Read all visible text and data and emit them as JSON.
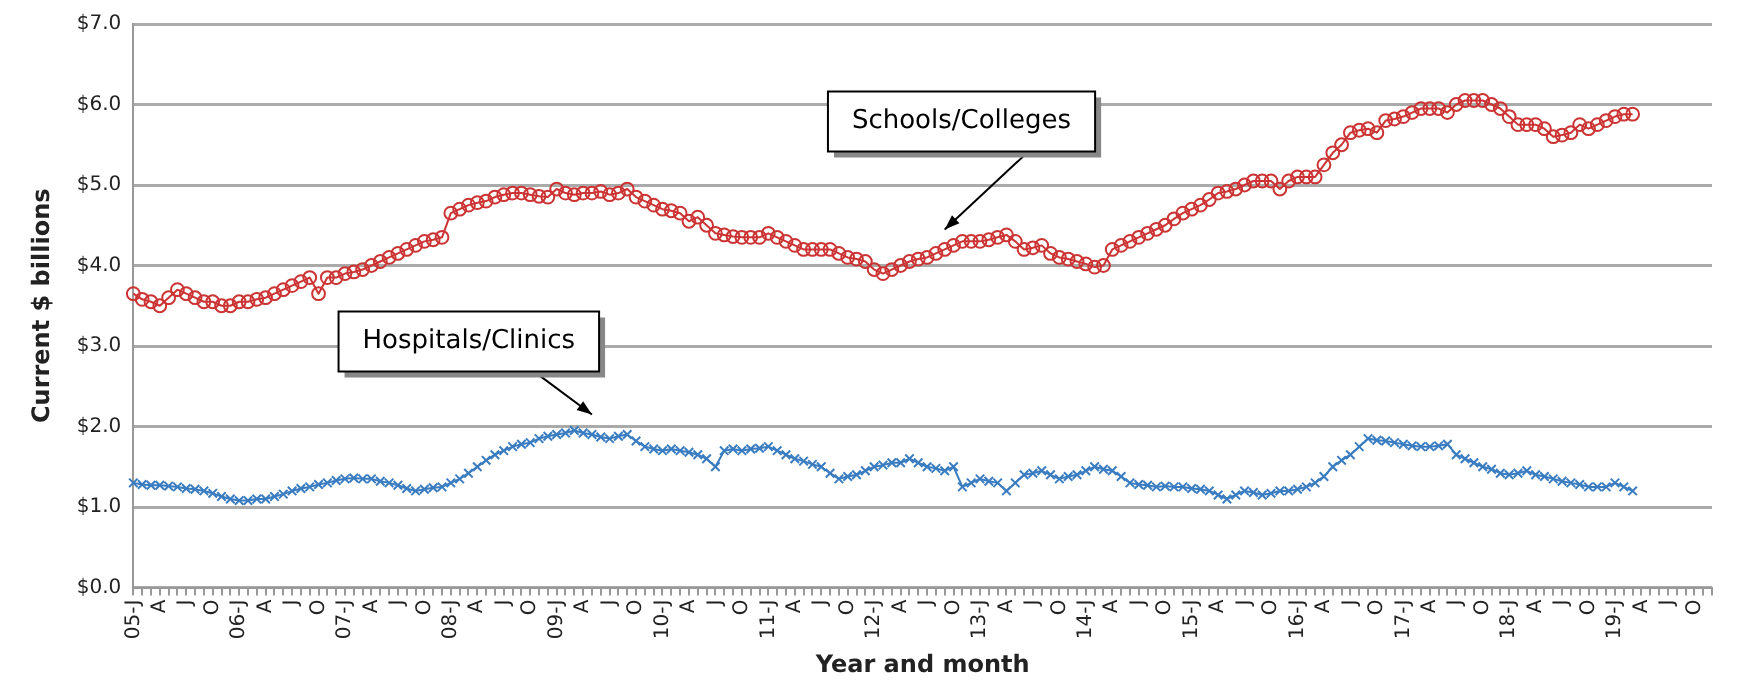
{
  "chart_data": {
    "type": "line",
    "xlabel": "Year and month",
    "ylabel": "Current $ billions",
    "categories": [
      "05-J",
      null,
      null,
      "A",
      null,
      null,
      "J",
      null,
      null,
      "O",
      null,
      null,
      "06-J",
      null,
      null,
      "A",
      null,
      null,
      "J",
      null,
      null,
      "O",
      null,
      null,
      "07-J",
      null,
      null,
      "A",
      null,
      null,
      "J",
      null,
      null,
      "O",
      null,
      null,
      "08-J",
      null,
      null,
      "A",
      null,
      null,
      "J",
      null,
      null,
      "O",
      null,
      null,
      "09-J",
      null,
      null,
      "A",
      null,
      null,
      "J",
      null,
      null,
      "O",
      null,
      null,
      "10-J",
      null,
      null,
      "A",
      null,
      null,
      "J",
      null,
      null,
      "O",
      null,
      null,
      "11-J",
      null,
      null,
      "A",
      null,
      null,
      "J",
      null,
      null,
      "O",
      null,
      null,
      "12-J",
      null,
      null,
      "A",
      null,
      null,
      "J",
      null,
      null,
      "O",
      null,
      null,
      "13-J",
      null,
      null,
      "A",
      null,
      null,
      "J",
      null,
      null,
      "O",
      null,
      null,
      "14-J",
      null,
      null,
      "A",
      null,
      null,
      "J",
      null,
      null,
      "O",
      null,
      null,
      "15-J",
      null,
      null,
      "A",
      null,
      null,
      "J",
      null,
      null,
      "O",
      null,
      null,
      "16-J",
      null,
      null,
      "A",
      null,
      null,
      "J",
      null,
      null,
      "O",
      null,
      null,
      "17-J",
      null,
      null,
      "A",
      null,
      null,
      "J",
      null,
      null,
      "O",
      null,
      null,
      "18-J",
      null,
      null,
      "A",
      null,
      null,
      "J",
      null,
      null,
      "O",
      null,
      null,
      "19-J",
      null,
      null,
      "A",
      null,
      null,
      "J",
      null,
      null,
      "O",
      null,
      null
    ],
    "series": [
      {
        "color": "#cc3333",
        "marker": "circle",
        "values": [
          3.65,
          3.58,
          3.55,
          3.5,
          3.6,
          3.7,
          3.65,
          3.6,
          3.55,
          3.55,
          3.5,
          3.5,
          3.55,
          3.55,
          3.58,
          3.6,
          3.65,
          3.7,
          3.75,
          3.8,
          3.85,
          3.65,
          3.85,
          3.85,
          3.9,
          3.92,
          3.95,
          4.0,
          4.05,
          4.1,
          4.15,
          4.2,
          4.25,
          4.3,
          4.32,
          4.35,
          4.65,
          4.7,
          4.75,
          4.78,
          4.8,
          4.85,
          4.88,
          4.9,
          4.9,
          4.88,
          4.86,
          4.85,
          4.95,
          4.9,
          4.88,
          4.9,
          4.9,
          4.92,
          4.88,
          4.9,
          4.95,
          4.85,
          4.8,
          4.75,
          4.7,
          4.68,
          4.65,
          4.55,
          4.6,
          4.5,
          4.4,
          4.38,
          4.36,
          4.35,
          4.35,
          4.35,
          4.4,
          4.35,
          4.3,
          4.25,
          4.2,
          4.2,
          4.2,
          4.2,
          4.15,
          4.1,
          4.08,
          4.05,
          3.95,
          3.9,
          3.95,
          4.0,
          4.05,
          4.08,
          4.1,
          4.15,
          4.2,
          4.25,
          4.3,
          4.3,
          4.3,
          4.32,
          4.35,
          4.38,
          4.3,
          4.2,
          4.22,
          4.25,
          4.15,
          4.1,
          4.08,
          4.05,
          4.02,
          3.98,
          4.0,
          4.2,
          4.25,
          4.3,
          4.35,
          4.4,
          4.45,
          4.5,
          4.58,
          4.65,
          4.7,
          4.75,
          4.82,
          4.9,
          4.92,
          4.95,
          5.0,
          5.05,
          5.05,
          5.05,
          4.95,
          5.05,
          5.1,
          5.1,
          5.1,
          5.25,
          5.4,
          5.5,
          5.65,
          5.68,
          5.7,
          5.65,
          5.8,
          5.82,
          5.85,
          5.9,
          5.95,
          5.95,
          5.95,
          5.9,
          6.0,
          6.05,
          6.05,
          6.05,
          6.0,
          5.95,
          5.85,
          5.75,
          5.75,
          5.75,
          5.7,
          5.6,
          5.62,
          5.65,
          5.75,
          5.7,
          5.75,
          5.8,
          5.85,
          5.88,
          5.88,
          null,
          null,
          null,
          null,
          null,
          null,
          null,
          null,
          null
        ]
      },
      {
        "color": "#3a7cc0",
        "marker": "cross",
        "values": [
          1.3,
          1.28,
          1.27,
          1.27,
          1.26,
          1.25,
          1.23,
          1.22,
          1.2,
          1.17,
          1.13,
          1.1,
          1.08,
          1.08,
          1.1,
          1.1,
          1.13,
          1.16,
          1.2,
          1.23,
          1.25,
          1.28,
          1.3,
          1.33,
          1.35,
          1.36,
          1.35,
          1.35,
          1.32,
          1.3,
          1.27,
          1.23,
          1.2,
          1.22,
          1.24,
          1.25,
          1.3,
          1.35,
          1.42,
          1.5,
          1.58,
          1.65,
          1.7,
          1.75,
          1.78,
          1.8,
          1.85,
          1.88,
          1.9,
          1.92,
          1.95,
          1.92,
          1.9,
          1.87,
          1.85,
          1.88,
          1.9,
          1.82,
          1.75,
          1.72,
          1.7,
          1.72,
          1.7,
          1.68,
          1.65,
          1.6,
          1.5,
          1.7,
          1.72,
          1.7,
          1.72,
          1.73,
          1.75,
          1.7,
          1.65,
          1.6,
          1.57,
          1.53,
          1.5,
          1.42,
          1.35,
          1.38,
          1.4,
          1.45,
          1.5,
          1.52,
          1.55,
          1.55,
          1.6,
          1.55,
          1.5,
          1.48,
          1.45,
          1.5,
          1.25,
          1.3,
          1.35,
          1.32,
          1.3,
          1.2,
          1.3,
          1.4,
          1.42,
          1.45,
          1.4,
          1.35,
          1.38,
          1.4,
          1.45,
          1.5,
          1.47,
          1.45,
          1.38,
          1.3,
          1.28,
          1.27,
          1.25,
          1.26,
          1.25,
          1.25,
          1.23,
          1.22,
          1.2,
          1.15,
          1.1,
          1.15,
          1.2,
          1.18,
          1.15,
          1.17,
          1.2,
          1.2,
          1.22,
          1.25,
          1.3,
          1.38,
          1.5,
          1.58,
          1.65,
          1.75,
          1.85,
          1.83,
          1.82,
          1.8,
          1.78,
          1.76,
          1.75,
          1.75,
          1.76,
          1.78,
          1.65,
          1.6,
          1.55,
          1.5,
          1.47,
          1.42,
          1.4,
          1.42,
          1.45,
          1.4,
          1.38,
          1.35,
          1.32,
          1.3,
          1.28,
          1.25,
          1.25,
          1.25,
          1.3,
          1.25,
          1.2,
          null,
          null,
          null,
          null,
          null,
          null,
          null,
          null,
          null
        ]
      }
    ],
    "annotations": [
      "Schools/Colleges",
      "Hospitals/Clinics"
    ],
    "ylim": [
      0,
      7
    ],
    "yticks": [
      {
        "value": 0,
        "label": "$0.0"
      },
      {
        "value": 1,
        "label": "$1.0"
      },
      {
        "value": 2,
        "label": "$2.0"
      },
      {
        "value": 3,
        "label": "$3.0"
      },
      {
        "value": 4,
        "label": "$4.0"
      },
      {
        "value": 5,
        "label": "$5.0"
      },
      {
        "value": 6,
        "label": "$6.0"
      },
      {
        "value": 7,
        "label": "$7.0"
      }
    ],
    "grid": "y",
    "legend": false
  }
}
